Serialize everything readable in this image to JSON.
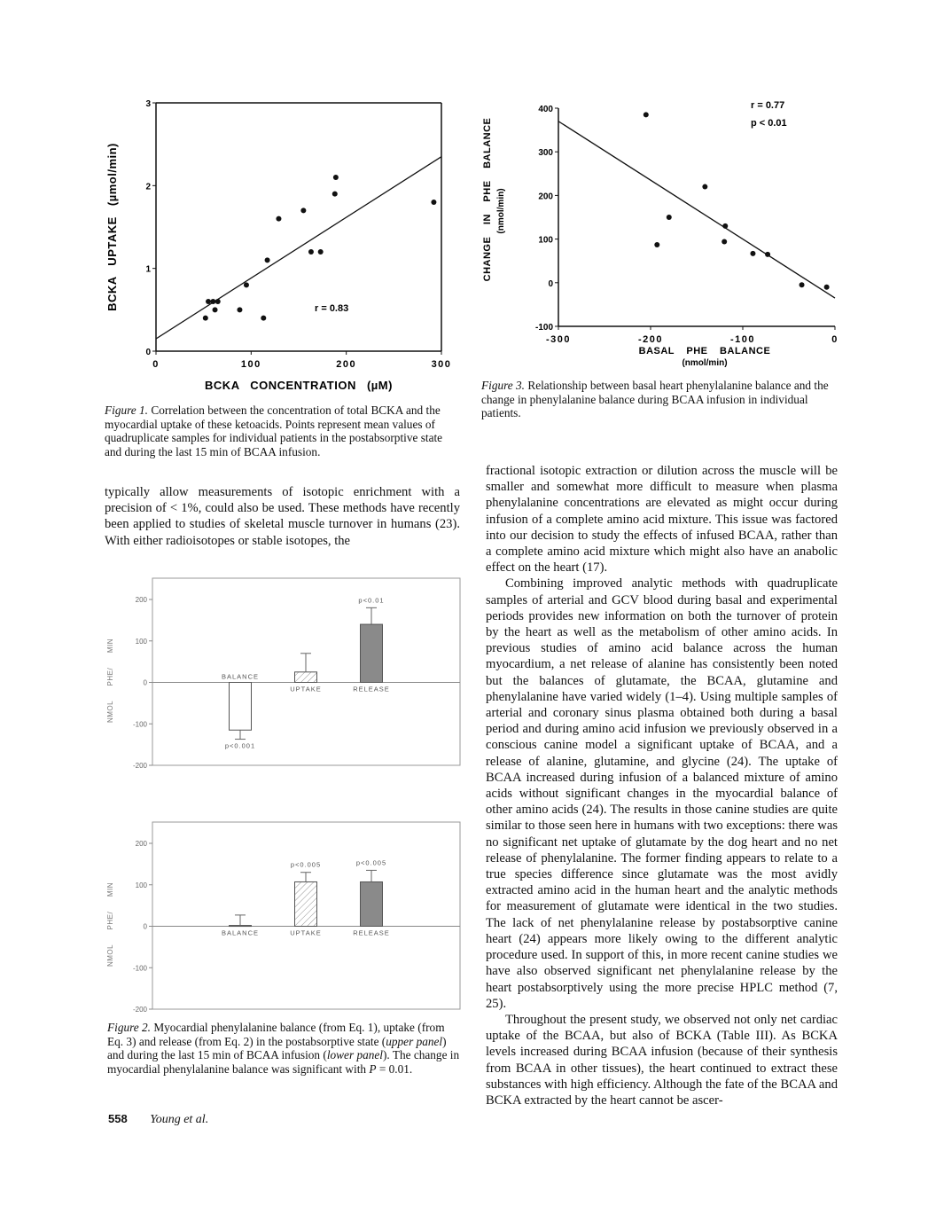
{
  "chart_data": [
    {
      "id": "figure1",
      "type": "scatter",
      "xlabel": "BCKA CONCENTRATION (µM)",
      "ylabel": "BCKA UPTAKE (µmol/min)",
      "xlim": [
        0,
        300
      ],
      "ylim": [
        0,
        3
      ],
      "xticks": [
        0,
        100,
        200,
        300
      ],
      "yticks": [
        0,
        1,
        2,
        3
      ],
      "points": [
        [
          52,
          0.4
        ],
        [
          55,
          0.6
        ],
        [
          60,
          0.6
        ],
        [
          62,
          0.5
        ],
        [
          65,
          0.6
        ],
        [
          88,
          0.5
        ],
        [
          95,
          0.8
        ],
        [
          113,
          0.4
        ],
        [
          117,
          1.1
        ],
        [
          129,
          1.6
        ],
        [
          155,
          1.7
        ],
        [
          163,
          1.2
        ],
        [
          173,
          1.2
        ],
        [
          188,
          1.9
        ],
        [
          189,
          2.1
        ],
        [
          292,
          1.8
        ]
      ],
      "fit_line": [
        [
          0,
          0.15
        ],
        [
          300,
          2.35
        ]
      ],
      "annotations": [
        "r = 0.83"
      ],
      "grid": false
    },
    {
      "id": "figure3",
      "type": "scatter",
      "xlabel": "BASAL PHE BALANCE",
      "xlabel_units": "(nmol/min)",
      "ylabel": "CHANGE IN PHE BALANCE",
      "ylabel_units": "(nmol/min)",
      "xlim": [
        -300,
        0
      ],
      "ylim": [
        -100,
        400
      ],
      "xticks": [
        -300,
        -200,
        -100,
        0
      ],
      "yticks": [
        -100,
        0,
        100,
        200,
        300,
        400
      ],
      "points": [
        [
          -205,
          385
        ],
        [
          -193,
          87
        ],
        [
          -180,
          150
        ],
        [
          -141,
          220
        ],
        [
          -119,
          130
        ],
        [
          -120,
          94
        ],
        [
          -89,
          67
        ],
        [
          -73,
          65
        ],
        [
          -36,
          -5
        ],
        [
          -9,
          -10
        ]
      ],
      "fit_line": [
        [
          -300,
          370
        ],
        [
          0,
          -35
        ]
      ],
      "annotations": [
        "r = 0.77",
        "p < 0.01"
      ],
      "grid": false
    },
    {
      "id": "figure2-upper",
      "type": "bar",
      "ylabel": "NMOL PHE/ MIN",
      "ylim": [
        -200,
        200
      ],
      "yticks": [
        -200,
        -100,
        0,
        100,
        200
      ],
      "categories": [
        "BALANCE",
        "UPTAKE",
        "RELEASE"
      ],
      "values": [
        -115,
        25,
        140
      ],
      "error_to": [
        -137,
        70,
        180
      ],
      "fills": [
        "open",
        "hatched",
        "stippled"
      ],
      "labels_p": [
        "p<0.001",
        "",
        "p<0.01"
      ],
      "grid": false
    },
    {
      "id": "figure2-lower",
      "type": "bar",
      "ylabel": "NMOL PHE/ MIN",
      "ylim": [
        -200,
        200
      ],
      "yticks": [
        -200,
        -100,
        0,
        100,
        200
      ],
      "categories": [
        "BALANCE",
        "UPTAKE",
        "RELEASE"
      ],
      "values": [
        2,
        107,
        107
      ],
      "error_to": [
        27,
        130,
        135
      ],
      "fills": [
        "open",
        "hatched",
        "stippled"
      ],
      "labels_p": [
        "",
        "p<0.005",
        "p<0.005"
      ],
      "grid": false
    }
  ],
  "captions": {
    "fig1_label": "Figure 1.",
    "fig1_text": " Correlation between the concentration of total BCKA and the myocardial uptake of these ketoacids. Points represent mean values of quadruplicate samples for individual patients in the postabsorptive state and during the last 15 min of BCAA infusion.",
    "fig3_label": "Figure 3.",
    "fig3_text": " Relationship between basal heart phenylalanine balance and the change in phenylalanine balance during BCAA infusion in individual patients.",
    "fig2_label": "Figure 2.",
    "fig2_a": " Myocardial phenylalanine balance (from Eq. 1), uptake (from Eq. 3) and release (from Eq. 2) in the postabsorptive state (",
    "fig2_upper": "upper panel",
    "fig2_b": ") and during the last 15 min of BCAA infusion (",
    "fig2_lower": "lower panel",
    "fig2_c": "). The change in myocardial phenylalanine balance was significant with ",
    "fig2_p": "P",
    "fig2_d": " = 0.01."
  },
  "left_text": "typically allow measurements of isotopic enrichment with a precision of < 1%, could also be used. These methods have recently been applied to studies of skeletal muscle turnover in humans (23). With either radioisotopes or stable isotopes, the",
  "right_paragraphs": [
    "fractional isotopic extraction or dilution across the muscle will be smaller and somewhat more difficult to measure when plasma phenylalanine concentrations are elevated as might occur during infusion of a complete amino acid mixture. This issue was factored into our decision to study the effects of infused BCAA, rather than a complete amino acid mixture which might also have an anabolic effect on the heart (17).",
    "Combining improved analytic methods with quadruplicate samples of arterial and GCV blood during basal and experimental periods provides new information on both the turnover of protein by the heart as well as the metabolism of other amino acids. In previous studies of amino acid balance across the human myocardium, a net release of alanine has consistently been noted but the balances of glutamate, the BCAA, glutamine and phenylalanine have varied widely (1–4). Using multiple samples of arterial and coronary sinus plasma obtained both during a basal period and during amino acid infusion we previously observed in a conscious canine model a significant uptake of BCAA, and a release of alanine, glutamine, and glycine (24). The uptake of BCAA increased during infusion of a balanced mixture of amino acids without significant changes in the myocardial balance of other amino acids (24). The results in those canine studies are quite similar to those seen here in humans with two exceptions: there was no significant net uptake of glutamate by the dog heart and no net release of phenylalanine. The former finding appears to relate to a true species difference since glutamate was the most avidly extracted amino acid in the human heart and the analytic methods for measurement of glutamate were identical in the two studies. The lack of net phenylalanine release by postabsorptive canine heart (24) appears more likely owing to the different analytic procedure used. In support of this, in more recent canine studies we have also observed significant net phenylalanine release by the heart postabsorptively using the more precise HPLC method (7, 25).",
    "Throughout the present study, we observed not only net cardiac uptake of the BCAA, but also of BCKA (Table III). As BCKA levels increased during BCAA infusion (because of their synthesis from BCAA in other tissues), the heart continued to extract these substances with high efficiency. Although the fate of the BCAA and BCKA extracted by the heart cannot be ascer-"
  ],
  "footer": {
    "page_number": "558",
    "running_head": "Young et al."
  }
}
